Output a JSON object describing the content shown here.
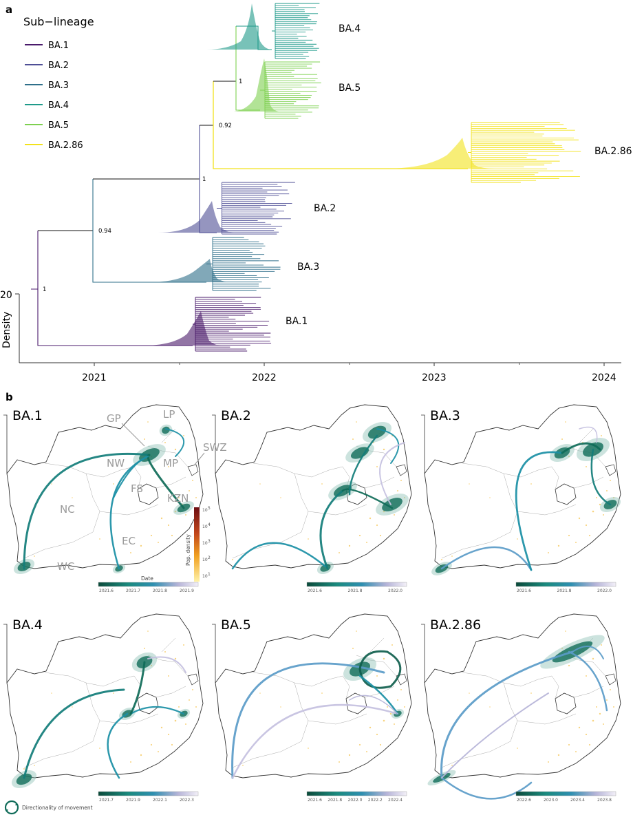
{
  "panels": {
    "a": {
      "letter": "a",
      "legend_title": "Sub−lineage",
      "lineages": [
        {
          "name": "BA.1",
          "color": "#4a1a6b"
        },
        {
          "name": "BA.2",
          "color": "#4f4f96"
        },
        {
          "name": "BA.3",
          "color": "#2f6f8a"
        },
        {
          "name": "BA.4",
          "color": "#1f9a8a"
        },
        {
          "name": "BA.5",
          "color": "#7ed050"
        },
        {
          "name": "BA.2.86",
          "color": "#f2e21c"
        }
      ],
      "x_ticks": [
        "2021",
        "2022",
        "2023",
        "2024"
      ],
      "density_label": "Density",
      "density_tick": "20",
      "supports": [
        "1",
        "0.92",
        "1",
        "0.94",
        "1"
      ]
    },
    "b": {
      "letter": "b",
      "maps": [
        {
          "title": "BA.1",
          "ticks": [
            "2021.6",
            "2021.7",
            "2021.8",
            "2021.9"
          ],
          "date_label": "Date"
        },
        {
          "title": "BA.2",
          "ticks": [
            "2021.6",
            "2021.8",
            "2022.0"
          ]
        },
        {
          "title": "BA.3",
          "ticks": [
            "2021.6",
            "2021.8",
            "2022.0"
          ]
        },
        {
          "title": "BA.4",
          "ticks": [
            "2021.7",
            "2021.9",
            "2022.1",
            "2022.3"
          ]
        },
        {
          "title": "BA.5",
          "ticks": [
            "2021.6",
            "2021.8",
            "2022.0",
            "2022.2",
            "2022.4"
          ]
        },
        {
          "title": "BA.2.86",
          "ticks": [
            "2022.6",
            "2023.0",
            "2023.4",
            "2023.8"
          ]
        }
      ],
      "provinces": [
        "GP",
        "LP",
        "SWZ",
        "NW",
        "MP",
        "FS",
        "KZN",
        "NC",
        "EC",
        "WC"
      ],
      "pop_density_label": "Pop. density",
      "pop_density_ticks": [
        "10",
        "10",
        "10",
        "10",
        "10"
      ],
      "pop_density_exponents": [
        "5",
        "4",
        "3",
        "2",
        "1"
      ],
      "directionality_label": "Directionality of movement"
    }
  }
}
